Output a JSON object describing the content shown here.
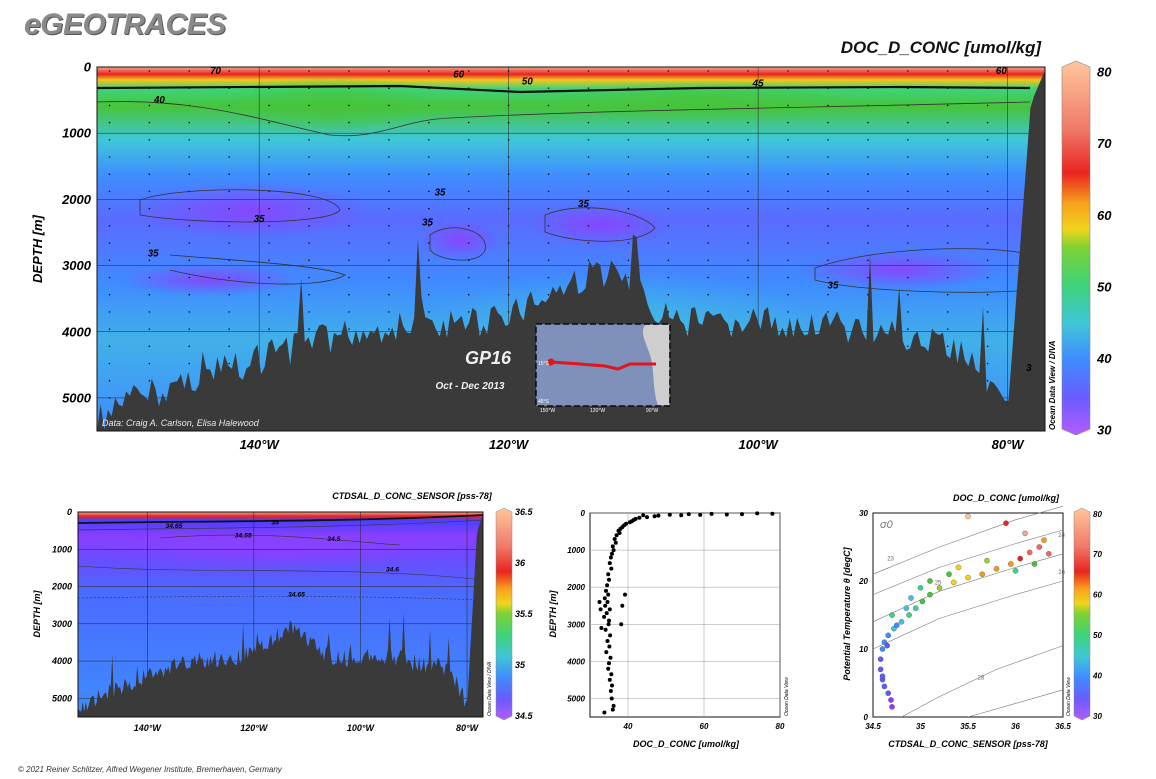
{
  "header": {
    "brand": "eGEOTRACES",
    "footer": "© 2021 Reiner Schlitzer, Alfred Wegener Institute, Bremerhaven, Germany"
  },
  "colors": {
    "rainbow": [
      "#9933ff",
      "#5b5bff",
      "#3f8cff",
      "#41c3e0",
      "#3bd38a",
      "#47c43a",
      "#9ad22e",
      "#f6d21a",
      "#f79a1c",
      "#e8231f",
      "#f06a5a",
      "#f6a68e",
      "#ffc299"
    ],
    "bathymetry": "#3a3a3a",
    "track": "#e0161e"
  },
  "chart_data": [
    {
      "id": "main_section",
      "type": "heatmap",
      "title": "DOC_D_CONC [umol/kg]",
      "ylabel": "DEPTH [m]",
      "x_ticks": [
        "140°W",
        "120°W",
        "100°W",
        "80°W"
      ],
      "x_tick_values": [
        140,
        120,
        100,
        80
      ],
      "xlim": [
        153,
        77
      ],
      "y_ticks": [
        0,
        1000,
        2000,
        3000,
        4000,
        5000
      ],
      "ylim": [
        0,
        5500
      ],
      "colorbar": {
        "ticks": [
          80,
          70,
          60,
          50,
          40,
          30
        ],
        "range": [
          30,
          80
        ]
      },
      "contour_labels": [
        {
          "text": "70",
          "lon": 143.5,
          "depth": 60
        },
        {
          "text": "60",
          "lon": 124,
          "depth": 110
        },
        {
          "text": "50",
          "lon": 118.5,
          "depth": 220
        },
        {
          "text": "45",
          "lon": 100,
          "depth": 250
        },
        {
          "text": "60",
          "lon": 80.5,
          "depth": 60
        },
        {
          "text": "40",
          "lon": 148,
          "depth": 500
        },
        {
          "text": "35",
          "lon": 125.5,
          "depth": 1900
        },
        {
          "text": "35",
          "lon": 140,
          "depth": 2300
        },
        {
          "text": "35",
          "lon": 126.5,
          "depth": 2350
        },
        {
          "text": "35",
          "lon": 114,
          "depth": 2070
        },
        {
          "text": "35",
          "lon": 148.5,
          "depth": 2820
        },
        {
          "text": "35",
          "lon": 94,
          "depth": 3300
        },
        {
          "text": "3",
          "lon": 78.3,
          "depth": 4550
        }
      ],
      "side_label": "Ocean Data View / DIVA",
      "credit": "Data: Craig A. Carlson, Elisa Halewood",
      "section_name": "GP16",
      "section_dates": "Oct - Dec 2013",
      "inset_map": {
        "lat_labels": [
          "15°S",
          "45°S"
        ],
        "lon_labels": [
          "150°W",
          "120°W",
          "90°W"
        ]
      }
    },
    {
      "id": "salinity_section",
      "type": "heatmap",
      "title": "CTDSAL_D_CONC_SENSOR [pss-78]",
      "ylabel": "DEPTH [m]",
      "x_ticks": [
        "140°W",
        "120°W",
        "100°W",
        "80°W"
      ],
      "x_tick_values": [
        140,
        120,
        100,
        80
      ],
      "xlim": [
        153,
        77
      ],
      "y_ticks": [
        0,
        1000,
        2000,
        3000,
        4000,
        5000
      ],
      "ylim": [
        0,
        5500
      ],
      "colorbar": {
        "ticks": [
          36.5,
          36,
          35.5,
          35,
          34.5
        ],
        "range": [
          34.5,
          36.5
        ]
      },
      "contour_labels": [
        {
          "text": "35",
          "lon": 116,
          "depth": 250
        },
        {
          "text": "34.65",
          "lon": 135,
          "depth": 350
        },
        {
          "text": "34.55",
          "lon": 122,
          "depth": 600
        },
        {
          "text": "34.5",
          "lon": 105,
          "depth": 700
        },
        {
          "text": "34.6",
          "lon": 94,
          "depth": 1520
        },
        {
          "text": "34.65",
          "lon": 112,
          "depth": 2180
        }
      ],
      "side_label": "Ocean Data View / DIVA"
    },
    {
      "id": "doc_profile",
      "type": "scatter",
      "xlabel": "DOC_D_CONC [umol/kg]",
      "ylabel": "DEPTH [m]",
      "xlim": [
        30,
        80
      ],
      "x_ticks": [
        40,
        60,
        80
      ],
      "ylim": [
        0,
        5500
      ],
      "y_ticks": [
        0,
        1000,
        2000,
        3000,
        4000,
        5000
      ],
      "side_label": "Ocean Data View",
      "points": [
        [
          74,
          10
        ],
        [
          78,
          20
        ],
        [
          70,
          30
        ],
        [
          66,
          40
        ],
        [
          62,
          25
        ],
        [
          59,
          50
        ],
        [
          56,
          30
        ],
        [
          54,
          60
        ],
        [
          51,
          45
        ],
        [
          48,
          70
        ],
        [
          47,
          90
        ],
        [
          45,
          110
        ],
        [
          44,
          60
        ],
        [
          43,
          130
        ],
        [
          42,
          160
        ],
        [
          41.5,
          190
        ],
        [
          41,
          220
        ],
        [
          40.5,
          250
        ],
        [
          39.5,
          290
        ],
        [
          39,
          330
        ],
        [
          38.5,
          380
        ],
        [
          38,
          430
        ],
        [
          37.5,
          480
        ],
        [
          37.8,
          540
        ],
        [
          37,
          600
        ],
        [
          36.5,
          700
        ],
        [
          36.8,
          800
        ],
        [
          36,
          900
        ],
        [
          36.2,
          1000
        ],
        [
          35.8,
          1100
        ],
        [
          35.5,
          1200
        ],
        [
          35.2,
          1350
        ],
        [
          35.6,
          1500
        ],
        [
          34.8,
          1650
        ],
        [
          35,
          1800
        ],
        [
          34.5,
          1950
        ],
        [
          34.2,
          2100
        ],
        [
          34.8,
          2200
        ],
        [
          33.9,
          2300
        ],
        [
          34.6,
          2400
        ],
        [
          34,
          2500
        ],
        [
          35.2,
          2600
        ],
        [
          34.4,
          2700
        ],
        [
          33.7,
          2800
        ],
        [
          35,
          2900
        ],
        [
          34.9,
          3000
        ],
        [
          34.1,
          3150
        ],
        [
          35.3,
          3300
        ],
        [
          34.6,
          3450
        ],
        [
          35.1,
          3600
        ],
        [
          34.3,
          3750
        ],
        [
          35.4,
          3900
        ],
        [
          35,
          4050
        ],
        [
          34.8,
          4200
        ],
        [
          35.6,
          4350
        ],
        [
          35.2,
          4500
        ],
        [
          35.8,
          4650
        ],
        [
          35.5,
          4800
        ],
        [
          35.7,
          5000
        ],
        [
          36.2,
          5200
        ],
        [
          33.8,
          5380
        ],
        [
          36,
          5300
        ],
        [
          38.2,
          3000
        ],
        [
          38.5,
          2500
        ],
        [
          39.2,
          2200
        ],
        [
          32.8,
          2600
        ],
        [
          32.5,
          2400
        ],
        [
          33,
          3100
        ]
      ]
    },
    {
      "id": "ts_diagram",
      "type": "scatter",
      "title": "DOC_D_CONC [umol/kg]",
      "xlabel": "CTDSAL_D_CONC_SENSOR [pss-78]",
      "ylabel": "Potential Temperature θ [degC]",
      "xlim": [
        34.5,
        36.5
      ],
      "x_ticks": [
        "34.5",
        "35",
        "35.5",
        "36",
        "36.5"
      ],
      "ylim": [
        0,
        30
      ],
      "y_ticks": [
        0,
        10,
        20,
        30
      ],
      "sigma_label": "σ0",
      "isopycnal_labels": [
        "23",
        "24",
        "25",
        "26",
        "28"
      ],
      "colorbar": {
        "ticks": [
          80,
          70,
          60,
          50,
          40,
          30
        ],
        "range": [
          30,
          80
        ]
      },
      "side_label": "Ocean Data View",
      "points": [
        [
          34.7,
          1.5,
          32
        ],
        [
          34.69,
          2.5,
          32
        ],
        [
          34.66,
          3.5,
          33
        ],
        [
          34.62,
          4.5,
          34
        ],
        [
          34.6,
          5.5,
          34
        ],
        [
          34.58,
          7,
          35
        ],
        [
          34.58,
          8.5,
          36
        ],
        [
          34.6,
          10,
          38
        ],
        [
          34.62,
          11,
          39
        ],
        [
          34.66,
          12,
          40
        ],
        [
          34.72,
          13,
          42
        ],
        [
          34.8,
          14,
          43
        ],
        [
          34.88,
          15,
          45
        ],
        [
          34.95,
          16,
          47
        ],
        [
          35.02,
          17,
          50
        ],
        [
          35.1,
          18,
          52
        ],
        [
          35.2,
          19,
          55
        ],
        [
          35.35,
          19.8,
          58
        ],
        [
          35.5,
          20.5,
          60
        ],
        [
          35.65,
          21,
          62
        ],
        [
          35.8,
          21.8,
          63
        ],
        [
          35.95,
          22.5,
          65
        ],
        [
          36.05,
          23.3,
          68
        ],
        [
          36.15,
          24.2,
          70
        ],
        [
          36.25,
          25,
          72
        ],
        [
          36.35,
          24,
          70
        ],
        [
          36.1,
          27,
          74
        ],
        [
          35.9,
          28.5,
          66
        ],
        [
          35.5,
          29.5,
          78
        ],
        [
          36.3,
          26,
          62
        ],
        [
          35.7,
          23,
          55
        ],
        [
          35.3,
          21,
          52
        ],
        [
          35.1,
          20,
          50
        ],
        [
          35.0,
          19,
          46
        ],
        [
          34.9,
          17.5,
          44
        ],
        [
          34.85,
          16,
          42
        ],
        [
          34.75,
          13.5,
          40
        ],
        [
          34.65,
          10.5,
          36
        ],
        [
          34.6,
          6,
          34
        ],
        [
          34.7,
          15,
          46
        ],
        [
          35.4,
          22,
          60
        ],
        [
          36.0,
          21.5,
          48
        ],
        [
          36.2,
          22.5,
          52
        ]
      ]
    }
  ]
}
